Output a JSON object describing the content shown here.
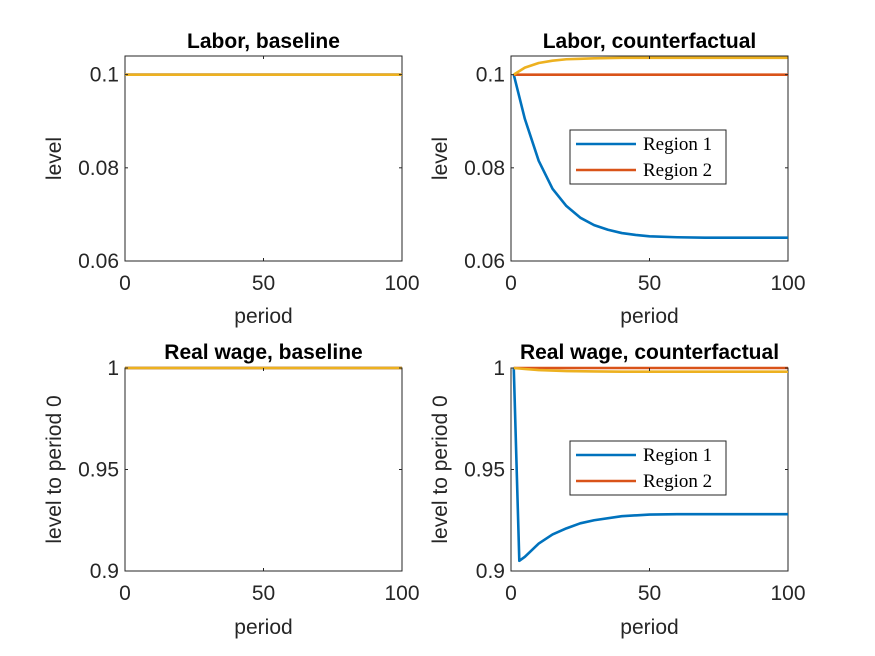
{
  "colors": {
    "region1": "#0072BD",
    "region2": "#D95319",
    "third": "#EDB120",
    "axis": "#262626",
    "background": "#ffffff"
  },
  "chart_data": [
    {
      "type": "line",
      "title": "Labor, baseline",
      "xlabel": "period",
      "ylabel": "level",
      "xlim": [
        0,
        100
      ],
      "ylim": [
        0.06,
        0.104
      ],
      "xticks": [
        0,
        50,
        100
      ],
      "xtick_labels": [
        "0",
        "50",
        "100"
      ],
      "yticks": [
        0.06,
        0.08,
        0.1
      ],
      "ytick_labels": [
        "0.06",
        "0.08",
        "0.1"
      ],
      "legend": null,
      "series": [
        {
          "color": "#0072BD",
          "x": [
            0,
            100
          ],
          "y": [
            0.1,
            0.1
          ]
        },
        {
          "color": "#D95319",
          "x": [
            0,
            100
          ],
          "y": [
            0.1,
            0.1
          ]
        },
        {
          "color": "#EDB120",
          "x": [
            0,
            100
          ],
          "y": [
            0.1,
            0.1
          ]
        }
      ]
    },
    {
      "type": "line",
      "title": "Labor, counterfactual",
      "xlabel": "period",
      "ylabel": "level",
      "xlim": [
        0,
        100
      ],
      "ylim": [
        0.06,
        0.104
      ],
      "xticks": [
        0,
        50,
        100
      ],
      "xtick_labels": [
        "0",
        "50",
        "100"
      ],
      "yticks": [
        0.06,
        0.08,
        0.1
      ],
      "ytick_labels": [
        "0.06",
        "0.08",
        "0.1"
      ],
      "legend": {
        "position": "center-right",
        "entries": [
          "Region 1",
          "Region 2"
        ]
      },
      "series": [
        {
          "name": "Region 1",
          "color": "#0072BD",
          "x": [
            1,
            5,
            10,
            15,
            20,
            25,
            30,
            35,
            40,
            45,
            50,
            60,
            70,
            80,
            90,
            100
          ],
          "y": [
            0.1,
            0.0905,
            0.0815,
            0.0755,
            0.0718,
            0.0693,
            0.0677,
            0.0667,
            0.066,
            0.0656,
            0.0653,
            0.0651,
            0.065,
            0.065,
            0.065,
            0.065
          ]
        },
        {
          "name": "Region 2",
          "color": "#D95319",
          "x": [
            1,
            100
          ],
          "y": [
            0.1,
            0.1
          ]
        },
        {
          "color": "#EDB120",
          "x": [
            1,
            5,
            10,
            15,
            20,
            25,
            30,
            40,
            50,
            60,
            70,
            80,
            90,
            100
          ],
          "y": [
            0.1,
            0.1015,
            0.1025,
            0.103,
            0.1033,
            0.1034,
            0.1035,
            0.1036,
            0.1036,
            0.1036,
            0.1036,
            0.1036,
            0.1036,
            0.1036
          ]
        }
      ]
    },
    {
      "type": "line",
      "title": "Real wage, baseline",
      "xlabel": "period",
      "ylabel": "level to period 0",
      "xlim": [
        0,
        100
      ],
      "ylim": [
        0.9,
        1.0
      ],
      "xticks": [
        0,
        50,
        100
      ],
      "xtick_labels": [
        "0",
        "50",
        "100"
      ],
      "yticks": [
        0.9,
        0.95,
        1.0
      ],
      "ytick_labels": [
        "0.9",
        "0.95",
        "1"
      ],
      "legend": null,
      "series": [
        {
          "color": "#0072BD",
          "x": [
            0,
            100
          ],
          "y": [
            1.0,
            1.0
          ]
        },
        {
          "color": "#D95319",
          "x": [
            0,
            100
          ],
          "y": [
            1.0,
            1.0
          ]
        },
        {
          "color": "#EDB120",
          "x": [
            0,
            100
          ],
          "y": [
            1.0,
            1.0
          ]
        }
      ]
    },
    {
      "type": "line",
      "title": "Real wage, counterfactual",
      "xlabel": "period",
      "ylabel": "level to period 0",
      "xlim": [
        0,
        100
      ],
      "ylim": [
        0.9,
        1.0
      ],
      "xticks": [
        0,
        50,
        100
      ],
      "xtick_labels": [
        "0",
        "50",
        "100"
      ],
      "yticks": [
        0.9,
        0.95,
        1.0
      ],
      "ytick_labels": [
        "0.9",
        "0.95",
        "1"
      ],
      "legend": {
        "position": "center-right",
        "entries": [
          "Region 1",
          "Region 2"
        ]
      },
      "series": [
        {
          "name": "Region 1",
          "color": "#0072BD",
          "x": [
            1,
            3,
            5,
            10,
            15,
            20,
            25,
            30,
            40,
            50,
            60,
            70,
            80,
            90,
            100
          ],
          "y": [
            1.0,
            0.905,
            0.907,
            0.9135,
            0.918,
            0.921,
            0.9235,
            0.925,
            0.927,
            0.9278,
            0.928,
            0.928,
            0.928,
            0.928,
            0.928
          ]
        },
        {
          "name": "Region 2",
          "color": "#D95319",
          "x": [
            1,
            100
          ],
          "y": [
            1.0,
            1.0
          ]
        },
        {
          "color": "#EDB120",
          "x": [
            1,
            5,
            10,
            20,
            30,
            40,
            50,
            60,
            70,
            80,
            90,
            100
          ],
          "y": [
            1.0,
            0.9995,
            0.999,
            0.9985,
            0.9983,
            0.9982,
            0.9982,
            0.9982,
            0.9982,
            0.9982,
            0.9982,
            0.9982
          ]
        }
      ]
    }
  ]
}
